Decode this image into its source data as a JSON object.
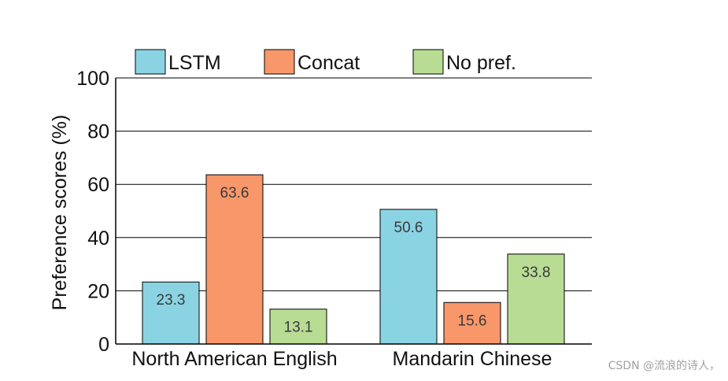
{
  "chart_data": {
    "type": "bar",
    "categories": [
      "North American English",
      "Mandarin Chinese"
    ],
    "series": [
      {
        "name": "LSTM",
        "values": [
          23.3,
          50.6
        ],
        "color": "#8ad3e3"
      },
      {
        "name": "Concat",
        "values": [
          63.6,
          15.6
        ],
        "color": "#f7976a"
      },
      {
        "name": "No pref.",
        "values": [
          13.1,
          33.8
        ],
        "color": "#b8dc94"
      }
    ],
    "ylabel": "Preference scores (%)",
    "ylim": [
      0,
      100
    ],
    "yticks": [
      0,
      20,
      40,
      60,
      80,
      100
    ],
    "grid": true,
    "legend": "top"
  },
  "watermark": "CSDN @流浪的诗人，"
}
